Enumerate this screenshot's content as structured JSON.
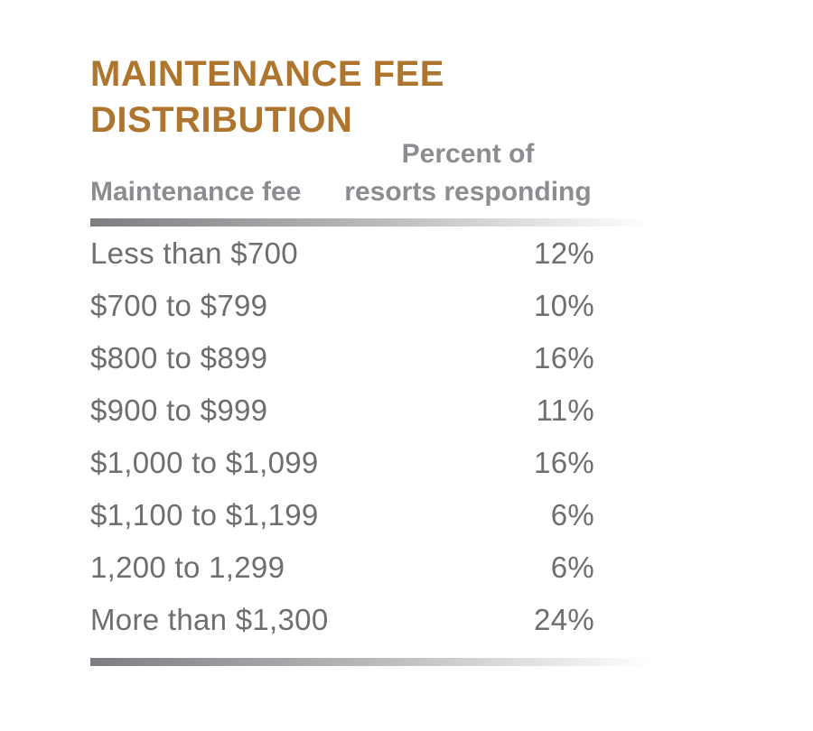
{
  "title": "MAINTENANCE FEE\nDISTRIBUTION",
  "table": {
    "columns": {
      "fee": "Maintenance fee",
      "percent": "Percent of\nresorts responding"
    },
    "rows": [
      {
        "fee": "Less than $700",
        "percent": "12%"
      },
      {
        "fee": "$700 to $799",
        "percent": "10%"
      },
      {
        "fee": "$800 to $899",
        "percent": "16%"
      },
      {
        "fee": "$900 to $999",
        "percent": "11%"
      },
      {
        "fee": "$1,000 to $1,099",
        "percent": "16%"
      },
      {
        "fee": "$1,100 to $1,199",
        "percent": "6%"
      },
      {
        "fee": "1,200 to 1,299",
        "percent": "6%"
      },
      {
        "fee": "More than $1,300",
        "percent": "24%"
      }
    ]
  },
  "colors": {
    "title_color": "#ae752f",
    "header_text": "#8b8d90",
    "body_text": "#6d6e71",
    "bar_start": "#7c7e81",
    "bar_mid": "#b9bbbd",
    "bar_end": "#ffffff",
    "page_bg": "#ffffff"
  },
  "chart_data": {
    "type": "table",
    "title": "MAINTENANCE FEE DISTRIBUTION",
    "columns": [
      "Maintenance fee",
      "Percent of resorts responding"
    ],
    "categories": [
      "Less than $700",
      "$700 to $799",
      "$800 to $899",
      "$900 to $999",
      "$1,000 to $1,099",
      "$1,100 to $1,199",
      "1,200 to 1,299",
      "More than $1,300"
    ],
    "values": [
      12,
      10,
      16,
      11,
      16,
      6,
      6,
      24
    ],
    "unit": "percent",
    "legend_position": "none",
    "grid": false
  }
}
